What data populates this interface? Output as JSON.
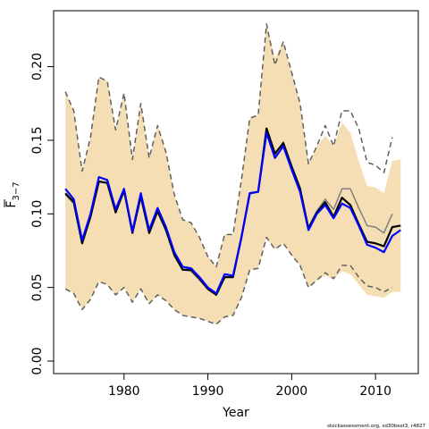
{
  "chart_data": {
    "type": "line",
    "xlabel": "Year",
    "ylabel": {
      "base": "F",
      "sub": "3−7"
    },
    "xlim": [
      1971.6,
      2015.1
    ],
    "ylim": [
      -0.0085,
      0.238
    ],
    "xticks": [
      1980,
      1990,
      2000,
      2010
    ],
    "yticks": [
      0.0,
      0.05,
      0.1,
      0.15,
      0.2
    ],
    "ytick_labels": [
      "0.00",
      "0.05",
      "0.10",
      "0.15",
      "0.20"
    ],
    "grid": false,
    "legend": "none",
    "colors": {
      "band": "#f5deb3",
      "black_line": "#000000",
      "blue_line": "#0000ff",
      "dashed": "#606060",
      "grey_line": "#808080"
    },
    "credit": "stockassessment.org, sd30best3, r4827",
    "series": [
      {
        "role": "band-upper",
        "x": [
          1973,
          1974,
          1975,
          1976,
          1977,
          1978,
          1979,
          1980,
          1981,
          1982,
          1983,
          1984,
          1985,
          1986,
          1987,
          1988,
          1989,
          1990,
          1991,
          1992,
          1993,
          1994,
          1995,
          1996,
          1997,
          1998,
          1999,
          2000,
          2001,
          2002,
          2003,
          2004,
          2005,
          2006,
          2007,
          2008,
          2009,
          2010,
          2011,
          2012,
          2013
        ],
        "values": [
          0.183,
          0.17,
          0.129,
          0.152,
          0.193,
          0.19,
          0.157,
          0.182,
          0.137,
          0.175,
          0.138,
          0.16,
          0.142,
          0.113,
          0.096,
          0.094,
          0.084,
          0.071,
          0.064,
          0.086,
          0.086,
          0.123,
          0.165,
          0.167,
          0.229,
          0.206,
          0.217,
          0.196,
          0.175,
          0.134,
          0.146,
          0.153,
          0.146,
          0.162,
          0.155,
          0.136,
          0.119,
          0.118,
          0.114,
          0.136,
          0.137
        ]
      },
      {
        "role": "band-lower",
        "x": [
          1973,
          1974,
          1975,
          1976,
          1977,
          1978,
          1979,
          1980,
          1981,
          1982,
          1983,
          1984,
          1985,
          1986,
          1987,
          1988,
          1989,
          1990,
          1991,
          1992,
          1993,
          1994,
          1995,
          1996,
          1997,
          1998,
          1999,
          2000,
          2001,
          2002,
          2003,
          2004,
          2005,
          2006,
          2007,
          2008,
          2009,
          2010,
          2011,
          2012,
          2013
        ],
        "values": [
          0.049,
          0.046,
          0.035,
          0.042,
          0.054,
          0.052,
          0.045,
          0.05,
          0.04,
          0.049,
          0.039,
          0.045,
          0.041,
          0.035,
          0.031,
          0.03,
          0.029,
          0.027,
          0.025,
          0.03,
          0.031,
          0.043,
          0.062,
          0.063,
          0.084,
          0.076,
          0.08,
          0.072,
          0.065,
          0.05,
          0.055,
          0.058,
          0.056,
          0.061,
          0.059,
          0.052,
          0.045,
          0.044,
          0.043,
          0.047,
          0.047
        ]
      },
      {
        "role": "dashed-upper",
        "x": [
          1973,
          1974,
          1975,
          1976,
          1977,
          1978,
          1979,
          1980,
          1981,
          1982,
          1983,
          1984,
          1985,
          1986,
          1987,
          1988,
          1989,
          1990,
          1991,
          1992,
          1993,
          1994,
          1995,
          1996,
          1997,
          1998,
          1999,
          2000,
          2001,
          2002,
          2003,
          2004,
          2005,
          2006,
          2007,
          2008,
          2009,
          2010,
          2011,
          2012
        ],
        "values": [
          0.183,
          0.17,
          0.129,
          0.152,
          0.193,
          0.19,
          0.157,
          0.182,
          0.137,
          0.175,
          0.138,
          0.16,
          0.142,
          0.113,
          0.096,
          0.094,
          0.084,
          0.071,
          0.064,
          0.086,
          0.086,
          0.123,
          0.165,
          0.167,
          0.229,
          0.201,
          0.217,
          0.196,
          0.175,
          0.134,
          0.146,
          0.16,
          0.146,
          0.17,
          0.17,
          0.158,
          0.135,
          0.133,
          0.128,
          0.152
        ]
      },
      {
        "role": "dashed-lower",
        "x": [
          1973,
          1974,
          1975,
          1976,
          1977,
          1978,
          1979,
          1980,
          1981,
          1982,
          1983,
          1984,
          1985,
          1986,
          1987,
          1988,
          1989,
          1990,
          1991,
          1992,
          1993,
          1994,
          1995,
          1996,
          1997,
          1998,
          1999,
          2000,
          2001,
          2002,
          2003,
          2004,
          2005,
          2006,
          2007,
          2008,
          2009,
          2010,
          2011,
          2012
        ],
        "values": [
          0.049,
          0.046,
          0.035,
          0.042,
          0.054,
          0.052,
          0.045,
          0.05,
          0.04,
          0.049,
          0.039,
          0.045,
          0.041,
          0.035,
          0.031,
          0.03,
          0.029,
          0.027,
          0.025,
          0.03,
          0.031,
          0.043,
          0.062,
          0.063,
          0.084,
          0.076,
          0.08,
          0.072,
          0.065,
          0.05,
          0.055,
          0.06,
          0.056,
          0.065,
          0.065,
          0.057,
          0.051,
          0.05,
          0.047,
          0.05
        ]
      },
      {
        "role": "grey-line",
        "x": [
          1973,
          1974,
          1975,
          1976,
          1977,
          1978,
          1979,
          1980,
          1981,
          1982,
          1983,
          1984,
          1985,
          1986,
          1987,
          1988,
          1989,
          1990,
          1991,
          1992,
          1993,
          1994,
          1995,
          1996,
          1997,
          1998,
          1999,
          2000,
          2001,
          2002,
          2003,
          2004,
          2005,
          2006,
          2007,
          2008,
          2009,
          2010,
          2011,
          2012
        ],
        "values": [
          0.113,
          0.107,
          0.08,
          0.098,
          0.122,
          0.121,
          0.101,
          0.115,
          0.087,
          0.111,
          0.087,
          0.101,
          0.089,
          0.072,
          0.062,
          0.061,
          0.055,
          0.049,
          0.045,
          0.057,
          0.057,
          0.083,
          0.114,
          0.115,
          0.155,
          0.14,
          0.149,
          0.133,
          0.118,
          0.091,
          0.102,
          0.11,
          0.103,
          0.117,
          0.117,
          0.104,
          0.092,
          0.091,
          0.087,
          0.1
        ]
      },
      {
        "role": "black-line",
        "x": [
          1973,
          1974,
          1975,
          1976,
          1977,
          1978,
          1979,
          1980,
          1981,
          1982,
          1983,
          1984,
          1985,
          1986,
          1987,
          1988,
          1989,
          1990,
          1991,
          1992,
          1993,
          1994,
          1995,
          1996,
          1997,
          1998,
          1999,
          2000,
          2001,
          2002,
          2003,
          2004,
          2005,
          2006,
          2007,
          2008,
          2009,
          2010,
          2011,
          2012,
          2013
        ],
        "values": [
          0.114,
          0.108,
          0.08,
          0.098,
          0.122,
          0.121,
          0.101,
          0.116,
          0.087,
          0.112,
          0.087,
          0.102,
          0.089,
          0.072,
          0.062,
          0.062,
          0.056,
          0.049,
          0.045,
          0.057,
          0.057,
          0.084,
          0.114,
          0.115,
          0.158,
          0.141,
          0.148,
          0.132,
          0.117,
          0.09,
          0.101,
          0.108,
          0.098,
          0.111,
          0.106,
          0.093,
          0.081,
          0.08,
          0.078,
          0.091,
          0.092
        ]
      },
      {
        "role": "blue-line",
        "x": [
          1973,
          1974,
          1975,
          1976,
          1977,
          1978,
          1979,
          1980,
          1981,
          1982,
          1983,
          1984,
          1985,
          1986,
          1987,
          1988,
          1989,
          1990,
          1991,
          1992,
          1993,
          1994,
          1995,
          1996,
          1997,
          1998,
          1999,
          2000,
          2001,
          2002,
          2003,
          2004,
          2005,
          2006,
          2007,
          2008,
          2009,
          2010,
          2011,
          2012,
          2013
        ],
        "values": [
          0.117,
          0.11,
          0.082,
          0.1,
          0.125,
          0.123,
          0.103,
          0.117,
          0.088,
          0.114,
          0.089,
          0.104,
          0.091,
          0.074,
          0.064,
          0.063,
          0.057,
          0.05,
          0.046,
          0.059,
          0.058,
          0.084,
          0.114,
          0.115,
          0.155,
          0.138,
          0.146,
          0.13,
          0.115,
          0.089,
          0.1,
          0.106,
          0.097,
          0.107,
          0.104,
          0.092,
          0.079,
          0.077,
          0.074,
          0.085,
          0.089
        ]
      }
    ]
  }
}
